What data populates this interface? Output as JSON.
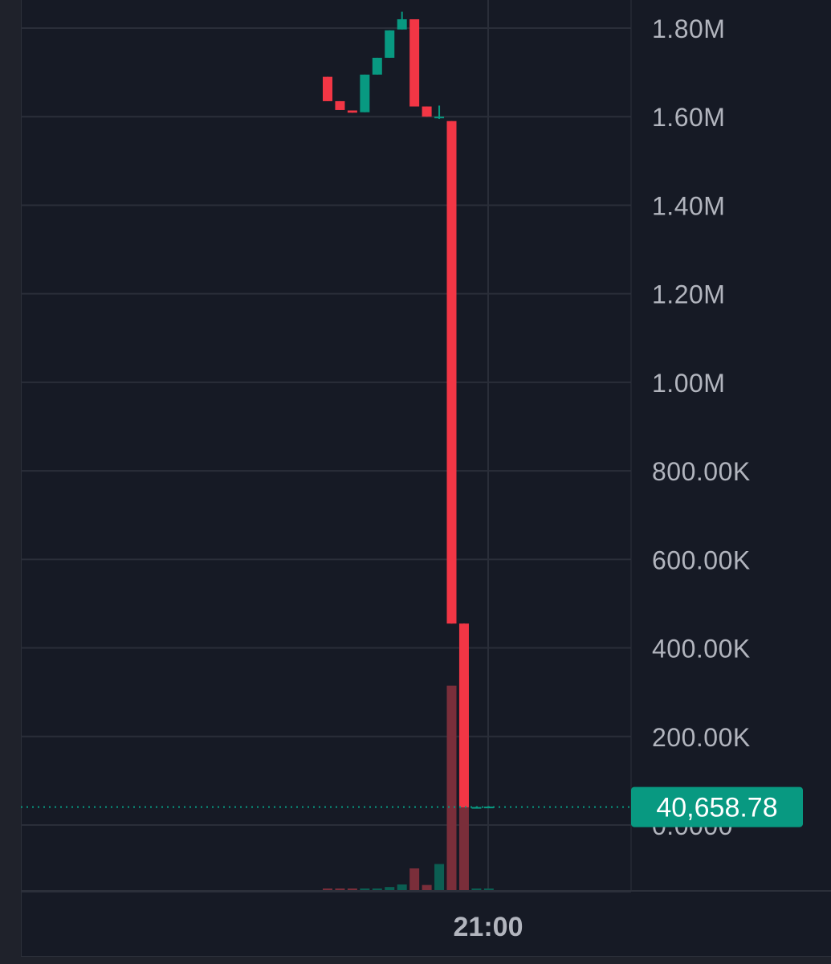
{
  "chart_data": {
    "type": "candlestick",
    "price_axis": {
      "ticks": [
        0,
        200000,
        400000,
        600000,
        800000,
        1000000,
        1200000,
        1400000,
        1600000,
        1800000
      ],
      "tick_labels": [
        "0.0000",
        "200.00K",
        "400.00K",
        "600.00K",
        "800.00K",
        "1.00M",
        "1.20M",
        "1.40M",
        "1.60M",
        "1.80M"
      ],
      "range": [
        -150000,
        1850000
      ]
    },
    "time_axis": {
      "tick_labels": [
        "21:00"
      ]
    },
    "grid": true,
    "candles": [
      {
        "o": 1690000,
        "h": 1690000,
        "l": 1635000,
        "c": 1635000
      },
      {
        "o": 1635000,
        "h": 1635000,
        "l": 1615000,
        "c": 1615000
      },
      {
        "o": 1614000,
        "h": 1614000,
        "l": 1609000,
        "c": 1609000
      },
      {
        "o": 1610000,
        "h": 1695000,
        "l": 1610000,
        "c": 1695000
      },
      {
        "o": 1695000,
        "h": 1733000,
        "l": 1695000,
        "c": 1733000
      },
      {
        "o": 1733000,
        "h": 1795000,
        "l": 1733000,
        "c": 1795000
      },
      {
        "o": 1797000,
        "h": 1837000,
        "l": 1797000,
        "c": 1820000
      },
      {
        "o": 1820000,
        "h": 1820000,
        "l": 1623000,
        "c": 1623000
      },
      {
        "o": 1623000,
        "h": 1623000,
        "l": 1600000,
        "c": 1600000
      },
      {
        "o": 1598000,
        "h": 1625000,
        "l": 1595000,
        "c": 1600000
      },
      {
        "o": 1590000,
        "h": 1590000,
        "l": 455000,
        "c": 455000
      },
      {
        "o": 455000,
        "h": 455000,
        "l": 40000,
        "c": 40000
      },
      {
        "o": 39500,
        "h": 41500,
        "l": 39000,
        "c": 40600
      },
      {
        "o": 40600,
        "h": 42500,
        "l": 40200,
        "c": 41500
      }
    ],
    "volume": [
      {
        "v": 0.4,
        "up": false
      },
      {
        "v": 0.4,
        "up": false
      },
      {
        "v": 0.4,
        "up": false
      },
      {
        "v": 0.3,
        "up": true
      },
      {
        "v": 0.4,
        "up": true
      },
      {
        "v": 1.2,
        "up": true
      },
      {
        "v": 2.2,
        "up": true
      },
      {
        "v": 8.5,
        "up": false
      },
      {
        "v": 2.0,
        "up": false
      },
      {
        "v": 10.2,
        "up": true
      },
      {
        "v": 80,
        "up": false
      },
      {
        "v": 84,
        "up": false
      },
      {
        "v": 0.5,
        "up": true
      },
      {
        "v": 0.5,
        "up": true
      }
    ],
    "last_price": 40658.78,
    "last_price_label": "40,658.78",
    "colors": {
      "up": "#089981",
      "down": "#f23645",
      "volume_up": "#0b5e52",
      "volume_down": "#7a2e3a",
      "grid": "#2a2e39",
      "background": "#161a25",
      "price_tag": "#089981"
    }
  }
}
